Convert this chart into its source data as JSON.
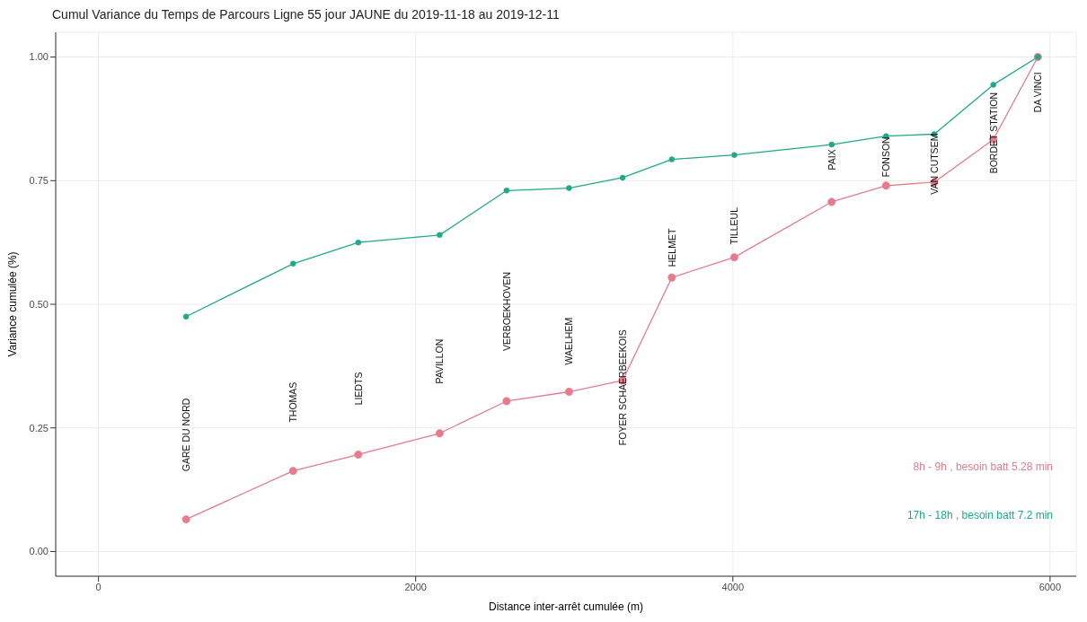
{
  "chart_data": {
    "type": "line",
    "title": "Cumul Variance du Temps de Parcours Ligne 55 jour JAUNE du 2019-11-18 au 2019-12-11",
    "xlabel": "Distance inter-arrêt cumulée (m)",
    "ylabel": "Variance cumulée (%)",
    "x": [
      552,
      1227,
      1638,
      2151,
      2573,
      2967,
      3305,
      3615,
      4009,
      4623,
      4966,
      5270,
      5642,
      5923
    ],
    "series": [
      {
        "name": "8h - 9h , besoin batt 5.28 min",
        "color": "#e57b8c",
        "values": [
          0.065,
          0.163,
          0.196,
          0.239,
          0.304,
          0.323,
          0.346,
          0.554,
          0.595,
          0.707,
          0.74,
          0.747,
          0.833,
          1.0
        ]
      },
      {
        "name": "17h - 18h , besoin batt 7.2 min",
        "color": "#20a88a",
        "values": [
          0.475,
          0.582,
          0.625,
          0.64,
          0.73,
          0.735,
          0.756,
          0.793,
          0.802,
          0.823,
          0.84,
          0.844,
          0.944,
          1.0
        ]
      }
    ],
    "annotations": [
      "GARE DU NORD",
      "THOMAS",
      "LIEDTS",
      "PAVILLON",
      "VERBOEKHOVEN",
      "WAELHEM",
      "FOYER SCHAERBEEKOIS",
      "HELMET",
      "TILLEUL",
      "PAIX",
      "FONSON",
      "VAN CUTSEM",
      "BORDET STATION",
      "DA VINCI"
    ],
    "xlim": [
      -270,
      6165
    ],
    "ylim": [
      -0.05,
      1.05
    ],
    "xticks": [
      0,
      2000,
      4000,
      6000
    ],
    "yticks": [
      {
        "value": 0,
        "label": "0.00"
      },
      {
        "value": 0.25,
        "label": "0.25"
      },
      {
        "value": 0.5,
        "label": "0.50"
      },
      {
        "value": 0.75,
        "label": "0.75"
      },
      {
        "value": 1,
        "label": "1.00"
      }
    ],
    "grid": true,
    "legend": "bottom right",
    "marker": "circle",
    "line_style": "solid"
  }
}
